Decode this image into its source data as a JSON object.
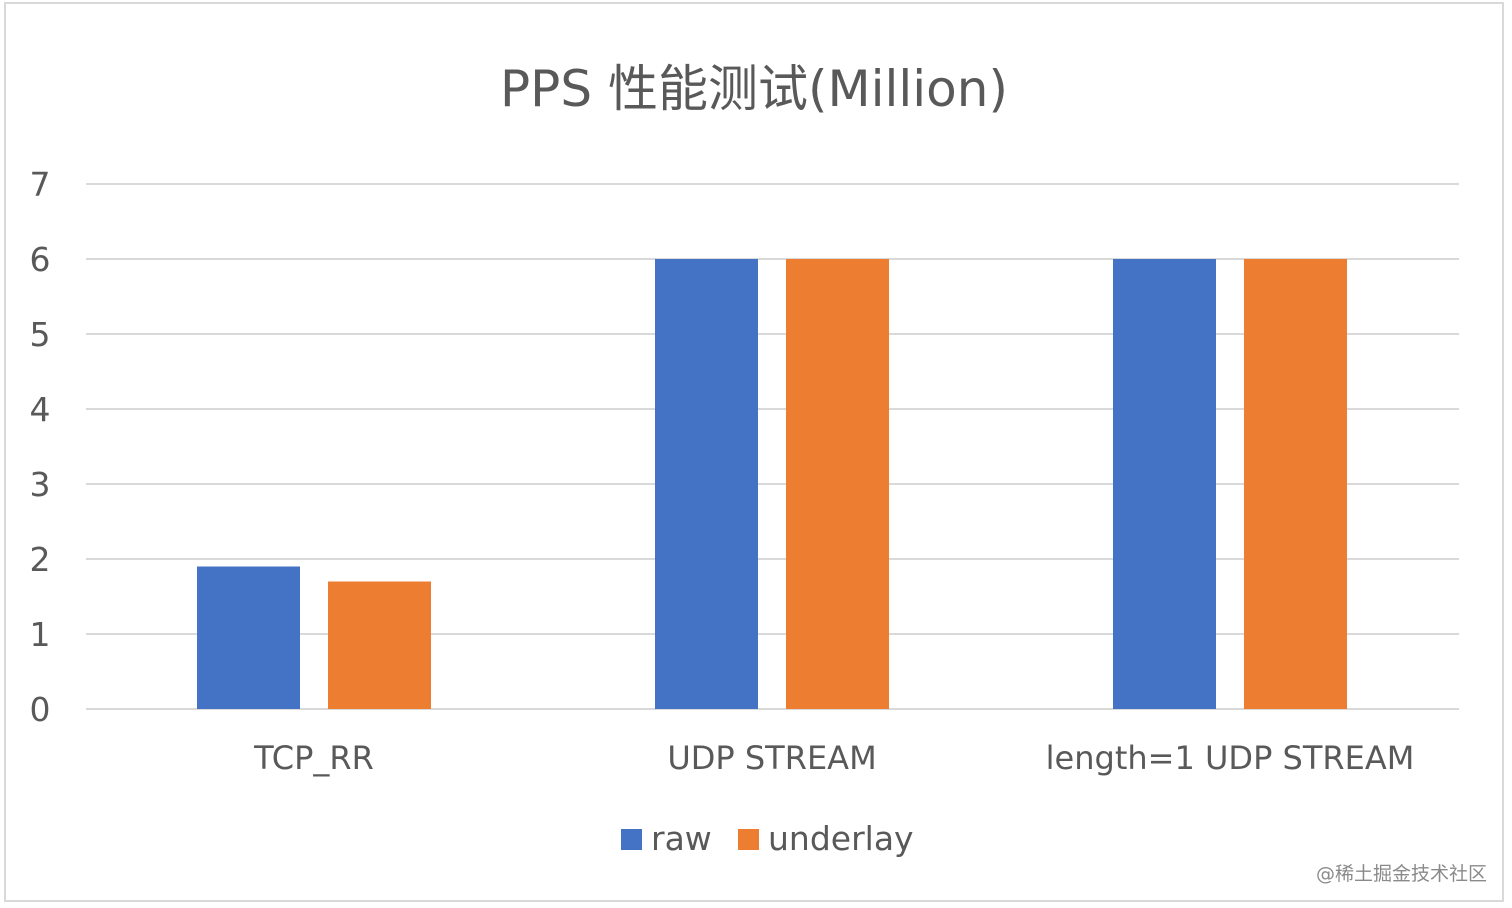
{
  "chart_data": {
    "type": "bar",
    "title": "PPS 性能测试(Million)",
    "categories": [
      "TCP_RR",
      "UDP STREAM",
      "length=1 UDP STREAM"
    ],
    "series": [
      {
        "name": "raw",
        "values": [
          1.9,
          6,
          6
        ],
        "color": "#4472C4"
      },
      {
        "name": "underlay",
        "values": [
          1.7,
          6,
          6
        ],
        "color": "#ED7D31"
      }
    ],
    "xlabel": "",
    "ylabel": "",
    "ylim": [
      0,
      7
    ],
    "yticks": [
      0,
      1,
      2,
      3,
      4,
      5,
      6,
      7
    ],
    "grid": true,
    "legend_position": "bottom"
  },
  "watermark": "@稀土掘金技术社区"
}
